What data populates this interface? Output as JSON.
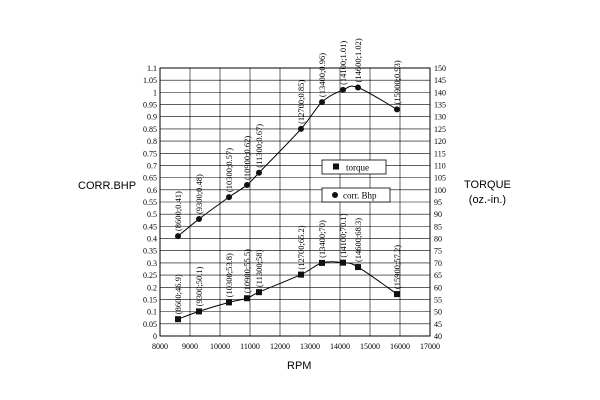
{
  "chart_data": {
    "type": "line",
    "xlabel": "RPM",
    "ylabel_left": "CORR.BHP",
    "ylabel_right": "TORQUE",
    "ylabel_right_unit": "(oz.-in.)",
    "xlim": [
      8000,
      17000
    ],
    "ylim_left": [
      0,
      1.1
    ],
    "ylim_right": [
      40,
      150
    ],
    "x_ticks": [
      "8000",
      "9000",
      "10000",
      "11000",
      "12000",
      "13000",
      "14000",
      "15000",
      "16000",
      "17000"
    ],
    "y_left_ticks": [
      "0",
      "0.05",
      "0.1",
      "0.15",
      "0.2",
      "0.25",
      "0.3",
      "0.35",
      "0.4",
      "0.45",
      "0.5",
      "0.55",
      "0.6",
      "0.65",
      "0.7",
      "0.75",
      "0.8",
      "0.85",
      "0.9",
      "0.95",
      "1",
      "1.05",
      "1.1"
    ],
    "y_right_ticks": [
      "40",
      "45",
      "50",
      "55",
      "60",
      "65",
      "70",
      "75",
      "80",
      "85",
      "90",
      "95",
      "100",
      "105",
      "110",
      "115",
      "120",
      "125",
      "130",
      "135",
      "140",
      "145",
      "150"
    ],
    "grid": true,
    "legend_position": "center-right",
    "series": [
      {
        "name": "torque",
        "marker": "square",
        "axis": "right",
        "x": [
          8600,
          9300,
          10300,
          10900,
          11300,
          12700,
          13400,
          14100,
          14600,
          15900
        ],
        "y": [
          46.9,
          50.1,
          53.8,
          55.5,
          58,
          65.2,
          70,
          70.1,
          68.3,
          57.2
        ],
        "labels": [
          "(8600;46.9)",
          "(9300;50.1)",
          "(10300;53.8)",
          "(10900;55.5)",
          "(11300;58)",
          "(12700;65.2)",
          "(13400;70)",
          "(14100;70.1)",
          "(14600;68.3)",
          "(15900;57.2)"
        ]
      },
      {
        "name": "corr. Bhp",
        "marker": "circle",
        "axis": "left",
        "x": [
          8600,
          9300,
          10300,
          10900,
          11300,
          12700,
          13400,
          14100,
          14600,
          15900
        ],
        "y": [
          0.41,
          0.48,
          0.57,
          0.62,
          0.67,
          0.85,
          0.96,
          1.01,
          1.02,
          0.93
        ],
        "labels": [
          "(8600;0.41)",
          "(9300;0.48)",
          "(10300;0.57)",
          "(10900;0.62)",
          "(11300;0.67)",
          "(12700;0.85)",
          "(13400;0.96)",
          "(14100;1.01)",
          "(14600;1.02)",
          "(15900;0.93)"
        ]
      }
    ]
  }
}
